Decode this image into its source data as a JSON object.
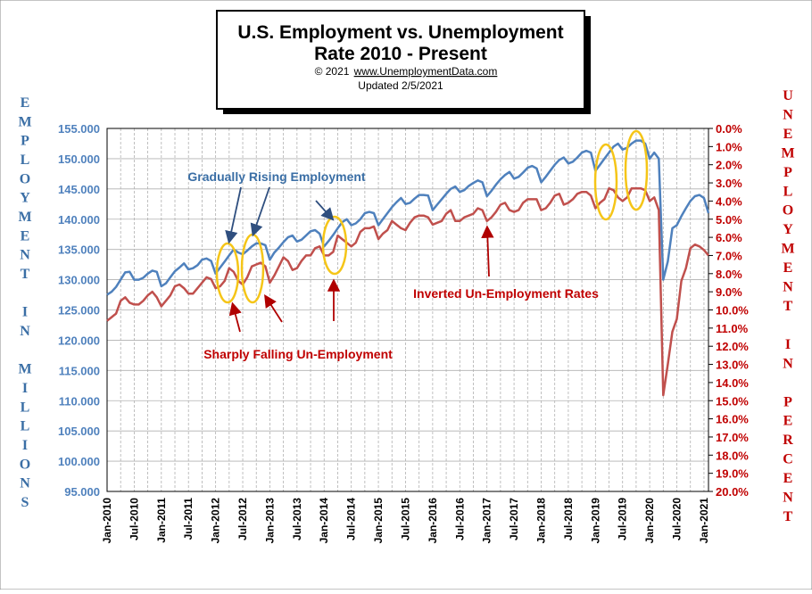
{
  "chart_data": {
    "type": "line",
    "title_line1": "U.S. Employment vs. Unemployment",
    "title_line2": "Rate 2010 - Present",
    "copyright": "© 2021",
    "website": "www.UnemploymentData.com",
    "updated": "Updated 2/5/2021",
    "left_axis_label": "EMPLOYMENT IN MILLIONS",
    "right_axis_label": "UNEMPLOYMENT IN PERCENT",
    "left_ticks": [
      "95.000",
      "100.000",
      "105.000",
      "110.000",
      "115.000",
      "120.000",
      "125.000",
      "130.000",
      "135.000",
      "140.000",
      "145.000",
      "150.000",
      "155.000"
    ],
    "right_ticks": [
      "0.0%",
      "1.0%",
      "2.0%",
      "3.0%",
      "4.0%",
      "5.0%",
      "6.0%",
      "7.0%",
      "8.0%",
      "9.0%",
      "10.0%",
      "11.0%",
      "12.0%",
      "13.0%",
      "14.0%",
      "15.0%",
      "16.0%",
      "17.0%",
      "18.0%",
      "19.0%",
      "20.0%"
    ],
    "x_ticks": [
      "Jan-2010",
      "Jul-2010",
      "Jan-2011",
      "Jul-2011",
      "Jan-2012",
      "Jul-2012",
      "Jan-2013",
      "Jul-2013",
      "Jan-2014",
      "Jul-2014",
      "Jan-2015",
      "Jul-2015",
      "Jan-2016",
      "Jul-2016",
      "Jan-2017",
      "Jul-2017",
      "Jan-2018",
      "Jul-2018",
      "Jan-2019",
      "Jul-2019",
      "Jan-2020",
      "Jul-2020",
      "Jan-2021"
    ],
    "ylim_left": [
      95,
      155
    ],
    "ylim_right_inverted": [
      0,
      20
    ],
    "grid": true,
    "employment_color": "#4f81bd",
    "unemployment_color": "#c0504d",
    "highlight_color": "#f5c518",
    "annotation_color_blue": "#3a6ea5",
    "annotation_color_red": "#c00000",
    "annotations": {
      "rising": "Gradually Rising Employment",
      "inverted": "Inverted Un-Employment Rates",
      "falling": "Sharply Falling Un-Employment"
    },
    "series": [
      {
        "name": "Employment",
        "axis": "left",
        "values": [
          127.5,
          128.0,
          128.8,
          130.0,
          131.2,
          131.3,
          130.0,
          130.0,
          130.3,
          131.0,
          131.5,
          131.3,
          128.9,
          129.4,
          130.4,
          131.4,
          132.0,
          132.7,
          131.7,
          131.9,
          132.4,
          133.3,
          133.5,
          133.1,
          131.0,
          132.0,
          133.0,
          134.0,
          135.0,
          134.5,
          134.2,
          134.8,
          135.5,
          136.0,
          136.0,
          135.7,
          133.3,
          134.5,
          135.3,
          136.2,
          137.0,
          137.3,
          136.3,
          136.6,
          137.3,
          138.0,
          138.2,
          137.6,
          135.5,
          136.4,
          137.4,
          138.5,
          139.5,
          140.0,
          139.0,
          139.3,
          140.0,
          141.0,
          141.2,
          141.0,
          139.0,
          140.0,
          141.0,
          142.0,
          142.8,
          143.5,
          142.5,
          142.7,
          143.4,
          144.0,
          144.0,
          143.9,
          141.5,
          142.4,
          143.3,
          144.2,
          145.0,
          145.4,
          144.5,
          144.8,
          145.5,
          146.0,
          146.4,
          146.1,
          143.8,
          144.7,
          145.7,
          146.6,
          147.3,
          147.8,
          146.7,
          147.0,
          147.7,
          148.5,
          148.8,
          148.4,
          146.1,
          147.0,
          148.0,
          149.0,
          149.8,
          150.2,
          149.2,
          149.5,
          150.2,
          151.0,
          151.3,
          151.0,
          148.0,
          149.0,
          150.0,
          151.0,
          152.0,
          152.5,
          151.5,
          151.8,
          152.5,
          153.0,
          153.0,
          152.5,
          150.0,
          151.0,
          150.0,
          130.0,
          133.0,
          138.5,
          139.0,
          140.5,
          141.8,
          143.0,
          143.8,
          144.0,
          143.5,
          141.0
        ]
      },
      {
        "name": "Unemployment",
        "axis": "right_inverted",
        "values": [
          10.6,
          10.4,
          10.2,
          9.5,
          9.3,
          9.6,
          9.7,
          9.7,
          9.5,
          9.2,
          9.0,
          9.3,
          9.8,
          9.5,
          9.2,
          8.7,
          8.6,
          8.8,
          9.1,
          9.1,
          8.8,
          8.5,
          8.2,
          8.3,
          8.8,
          8.7,
          8.4,
          7.7,
          7.9,
          8.4,
          8.6,
          8.2,
          7.6,
          7.5,
          7.4,
          7.6,
          8.5,
          8.1,
          7.6,
          7.1,
          7.3,
          7.8,
          7.7,
          7.3,
          7.0,
          7.0,
          6.6,
          6.5,
          7.0,
          7.0,
          6.8,
          5.9,
          6.1,
          6.3,
          6.5,
          6.3,
          5.7,
          5.5,
          5.5,
          5.4,
          6.1,
          5.8,
          5.6,
          5.1,
          5.3,
          5.5,
          5.6,
          5.2,
          4.9,
          4.8,
          4.8,
          4.9,
          5.3,
          5.2,
          5.1,
          4.7,
          4.5,
          5.1,
          5.1,
          4.9,
          4.8,
          4.7,
          4.4,
          4.5,
          5.1,
          4.9,
          4.6,
          4.2,
          4.1,
          4.5,
          4.6,
          4.5,
          4.1,
          3.9,
          3.9,
          3.9,
          4.5,
          4.4,
          4.1,
          3.7,
          3.6,
          4.2,
          4.1,
          3.9,
          3.6,
          3.5,
          3.5,
          3.7,
          4.4,
          4.1,
          3.9,
          3.3,
          3.4,
          3.8,
          4.0,
          3.8,
          3.3,
          3.3,
          3.3,
          3.4,
          4.0,
          3.8,
          4.5,
          14.7,
          13.0,
          11.2,
          10.5,
          8.4,
          7.7,
          6.6,
          6.4,
          6.5,
          6.7,
          7.0
        ]
      }
    ]
  }
}
